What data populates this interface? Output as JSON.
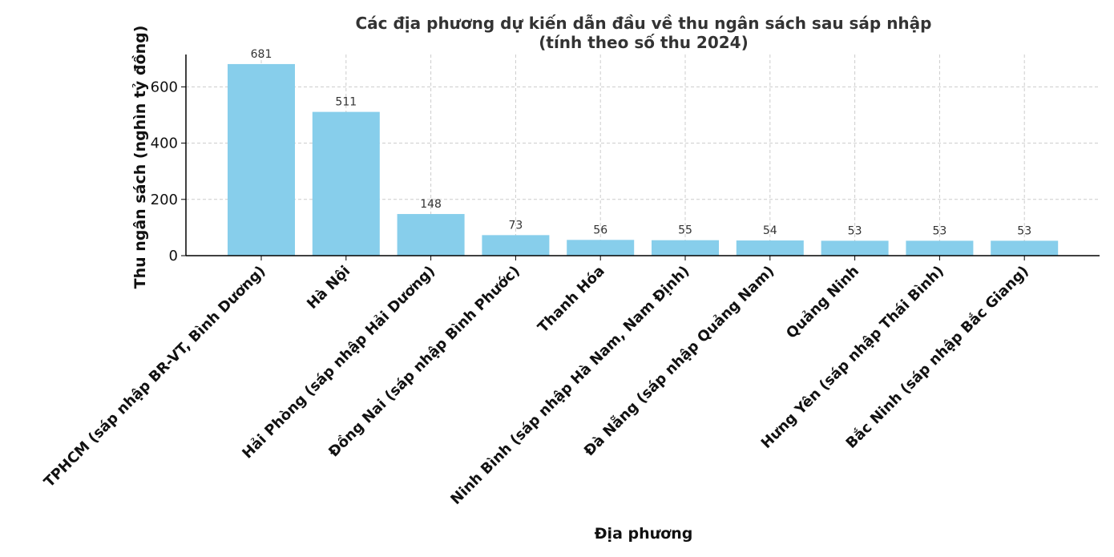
{
  "chart_data": {
    "type": "bar",
    "title": "Các địa phương dự kiến dẫn đầu về thu ngân sách sau sáp nhập",
    "subtitle": "(tính theo số thu 2024)",
    "xlabel": "Địa phương",
    "ylabel": "Thu ngân sách (nghìn tỷ đồng)",
    "categories": [
      "TPHCM (sáp nhập BR-VT, Bình Dương)",
      "Hà Nội",
      "Hải Phòng (sáp nhập Hải Dương)",
      "Đồng Nai (sáp nhập Bình Phước)",
      "Thanh Hóa",
      "Ninh Bình (sáp nhập Hà Nam, Nam Định)",
      "Đà Nẵng (sáp nhập Quảng Nam)",
      "Quảng Ninh",
      "Hưng Yên (sáp nhập Thái Bình)",
      "Bắc Ninh (sáp nhập Bắc Giang)"
    ],
    "values": [
      681,
      511,
      148,
      73,
      56,
      55,
      54,
      53,
      53,
      53
    ],
    "ylim": [
      0,
      715
    ],
    "yticks": [
      0,
      200,
      400,
      600
    ],
    "grid": true,
    "bar_color": "#87ceeb"
  }
}
